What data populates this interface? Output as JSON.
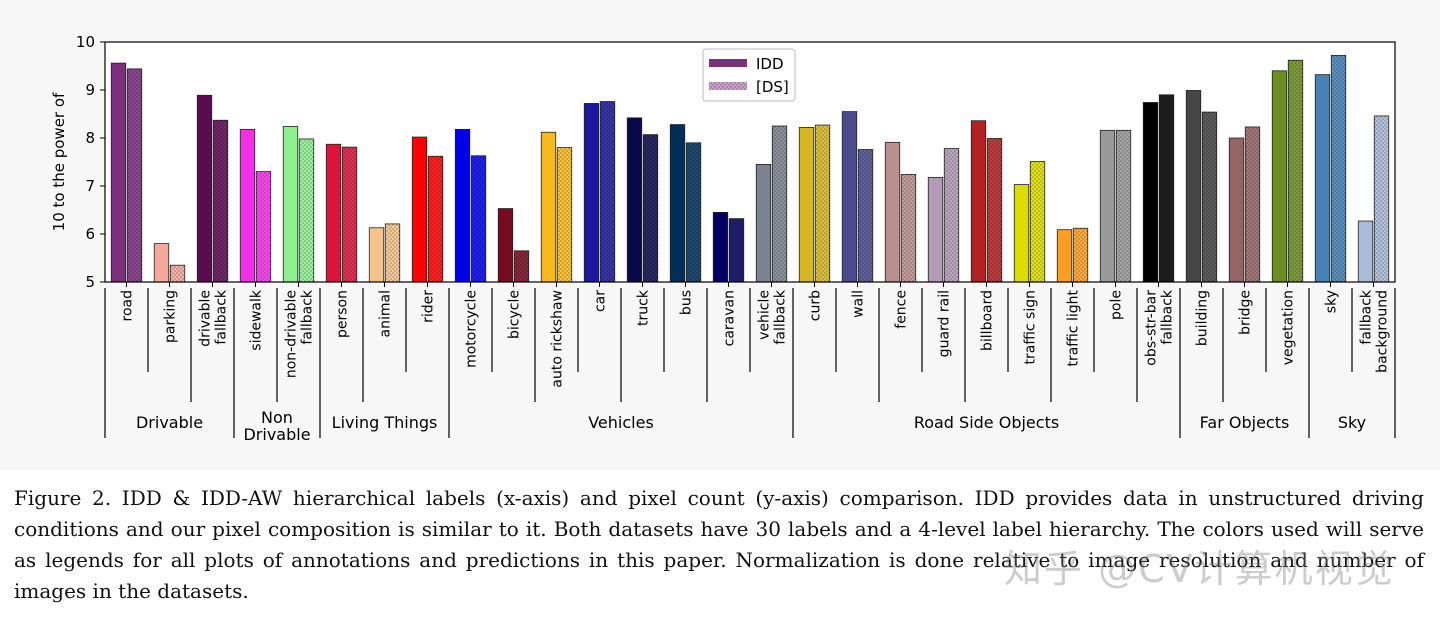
{
  "chart_data": {
    "type": "bar",
    "ylabel": "10 to the power of",
    "ylim": [
      5,
      10
    ],
    "yticks": [
      "5",
      "6",
      "7",
      "8",
      "9",
      "10"
    ],
    "legend": {
      "position": "top-center",
      "entries": [
        "IDD",
        "[DS]"
      ]
    },
    "categories": [
      {
        "label": "road",
        "color": "#7b2f7d",
        "values": [
          9.56,
          9.44
        ]
      },
      {
        "label": "parking",
        "color": "#f4a99a",
        "values": [
          5.8,
          5.35
        ]
      },
      {
        "label": "drivable\nfallback",
        "color": "#5c0a52",
        "values": [
          8.89,
          8.37
        ]
      },
      {
        "label": "sidewalk",
        "color": "#f032e6",
        "values": [
          8.18,
          7.3
        ]
      },
      {
        "label": "non-drivable\nfallback",
        "color": "#8ef08e",
        "values": [
          8.24,
          7.98
        ]
      },
      {
        "label": "person",
        "color": "#dc143c",
        "values": [
          7.87,
          7.81
        ]
      },
      {
        "label": "animal",
        "color": "#f5c389",
        "values": [
          6.13,
          6.21
        ]
      },
      {
        "label": "rider",
        "color": "#ff0000",
        "values": [
          8.02,
          7.62
        ]
      },
      {
        "label": "motorcycle",
        "color": "#0000e6",
        "values": [
          8.18,
          7.63
        ]
      },
      {
        "label": "bicycle",
        "color": "#770b20",
        "values": [
          6.53,
          5.65
        ]
      },
      {
        "label": "auto rickshaw",
        "color": "#f7b81f",
        "values": [
          8.12,
          7.8
        ]
      },
      {
        "label": "car",
        "color": "#1a1a9a",
        "values": [
          8.72,
          8.76
        ]
      },
      {
        "label": "truck",
        "color": "#0a0a4a",
        "values": [
          8.42,
          8.07
        ]
      },
      {
        "label": "bus",
        "color": "#00305a",
        "values": [
          8.28,
          7.9
        ]
      },
      {
        "label": "caravan",
        "color": "#000060",
        "values": [
          6.45,
          6.32
        ]
      },
      {
        "label": "vehicle\nfallback",
        "color": "#7a838f",
        "values": [
          7.45,
          8.25
        ]
      },
      {
        "label": "curb",
        "color": "#d6b622",
        "values": [
          8.22,
          8.27
        ]
      },
      {
        "label": "wall",
        "color": "#4a4a8e",
        "values": [
          8.55,
          7.76
        ]
      },
      {
        "label": "fence",
        "color": "#bc8f8f",
        "values": [
          7.91,
          7.24
        ]
      },
      {
        "label": "guard rail",
        "color": "#b19bb5",
        "values": [
          7.18,
          7.78
        ]
      },
      {
        "label": "billboard",
        "color": "#b22222",
        "values": [
          8.36,
          7.99
        ]
      },
      {
        "label": "traffic sign",
        "color": "#dcdc00",
        "values": [
          7.03,
          7.51
        ]
      },
      {
        "label": "traffic light",
        "color": "#faa01e",
        "values": [
          6.09,
          6.12
        ]
      },
      {
        "label": "pole",
        "color": "#999999",
        "values": [
          8.16,
          8.16
        ]
      },
      {
        "label": "obs-str-bar\nfallback",
        "color": "#000000",
        "values": [
          8.74,
          8.9
        ]
      },
      {
        "label": "building",
        "color": "#464646",
        "values": [
          8.99,
          8.54
        ]
      },
      {
        "label": "bridge",
        "color": "#966464",
        "values": [
          8.0,
          8.23
        ]
      },
      {
        "label": "vegetation",
        "color": "#6b8e23",
        "values": [
          9.4,
          9.62
        ]
      },
      {
        "label": "sky",
        "color": "#4682b4",
        "values": [
          9.32,
          9.72
        ]
      },
      {
        "label": "fallback\nbackground",
        "color": "#aabbd6",
        "values": [
          6.27,
          8.46
        ]
      }
    ],
    "groups": [
      {
        "label": "Drivable",
        "count": 3
      },
      {
        "label": "Non\nDrivable",
        "count": 2
      },
      {
        "label": "Living Things",
        "count": 3
      },
      {
        "label": "Vehicles",
        "count": 8
      },
      {
        "label": "Road Side Objects",
        "count": 9
      },
      {
        "label": "Far Objects",
        "count": 3
      },
      {
        "label": "Sky",
        "count": 2
      }
    ]
  },
  "caption": "Figure 2. IDD & IDD-AW hierarchical labels (x-axis) and pixel count (y-axis) comparison. IDD provides data in unstructured driving conditions and our pixel composition is similar to it. Both datasets have 30 labels and a 4-level label hierarchy. The colors used will serve as legends for all plots of annotations and predictions in this paper. Normalization is done relative to image resolution and number of images in the datasets.",
  "watermark": "知乎 @CV计算机视觉"
}
